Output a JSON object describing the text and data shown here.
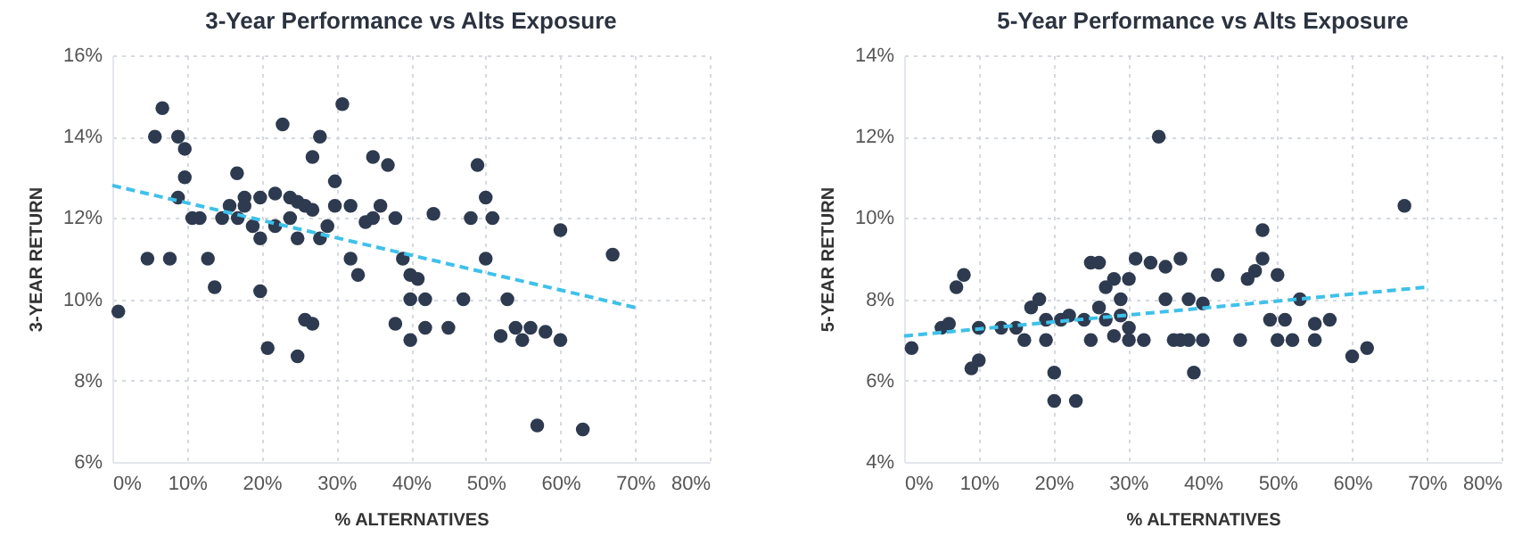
{
  "chart_data": [
    {
      "type": "scatter",
      "title": "3-Year Performance vs Alts Exposure",
      "xlabel": "% ALTERNATIVES",
      "ylabel": "3-YEAR RETURN",
      "xlim": [
        0,
        80
      ],
      "xticks": [
        {
          "value": 0,
          "label": "0%"
        },
        {
          "value": 10,
          "label": "10%"
        },
        {
          "value": 20,
          "label": "20%"
        },
        {
          "value": 30,
          "label": "30%"
        },
        {
          "value": 40,
          "label": "40%"
        },
        {
          "value": 50,
          "label": "50%"
        },
        {
          "value": 60,
          "label": "60%"
        },
        {
          "value": 70,
          "label": "70%"
        },
        {
          "value": 80,
          "label": "80%"
        }
      ],
      "ylim": [
        6,
        16
      ],
      "yticks": [
        {
          "value": 6,
          "label": "6%"
        },
        {
          "value": 8,
          "label": "8%"
        },
        {
          "value": 10,
          "label": "10%"
        },
        {
          "value": 12,
          "label": "12%"
        },
        {
          "value": 14,
          "label": "14%"
        },
        {
          "value": 16,
          "label": "16%"
        }
      ],
      "grid": true,
      "series": [
        {
          "marker": "circle",
          "color": "#2d3a4f",
          "x": [
            0.8,
            4.7,
            5.7,
            6.7,
            7.7,
            8.8,
            8.8,
            9.7,
            9.7,
            10.7,
            11.7,
            12.8,
            13.7,
            14.7,
            15.7,
            16.7,
            16.8,
            17.7,
            17.7,
            18.8,
            19.8,
            19.8,
            19.8,
            20.8,
            21.8,
            21.8,
            22.8,
            23.8,
            23.8,
            24.8,
            24.8,
            24.8,
            25.8,
            25.8,
            26.8,
            26.8,
            26.8,
            27.8,
            27.8,
            28.8,
            29.8,
            29.8,
            30.8,
            31.9,
            31.9,
            32.9,
            33.9,
            34.9,
            34.9,
            35.9,
            36.9,
            37.9,
            37.9,
            38.9,
            39.9,
            39.9,
            39.9,
            40.9,
            41.9,
            41.9,
            43.0,
            45.0,
            47.0,
            48.0,
            48.9,
            50.0,
            50.0,
            50.9,
            52.0,
            52.9,
            54.0,
            54.9,
            56.0,
            56.9,
            58.0,
            60.0,
            60.0,
            63.0,
            67.0
          ],
          "values": [
            9.7,
            11.0,
            14.0,
            14.7,
            11.0,
            14.0,
            12.5,
            13.7,
            13.0,
            12.0,
            12.0,
            11.0,
            10.3,
            12.0,
            12.3,
            13.1,
            12.0,
            12.5,
            12.3,
            11.8,
            12.5,
            11.5,
            10.2,
            8.8,
            12.6,
            11.8,
            14.3,
            12.5,
            12.0,
            12.4,
            11.5,
            8.6,
            12.3,
            9.5,
            12.2,
            13.5,
            9.4,
            11.5,
            14.0,
            11.8,
            12.9,
            12.3,
            14.8,
            12.3,
            11.0,
            10.6,
            11.9,
            12.0,
            13.5,
            12.3,
            13.3,
            12.0,
            9.4,
            11.0,
            10.6,
            10.0,
            9.0,
            10.5,
            10.0,
            9.3,
            12.1,
            9.3,
            10.0,
            12.0,
            13.3,
            12.5,
            11.0,
            12.0,
            9.1,
            10.0,
            9.3,
            9.0,
            9.3,
            6.9,
            9.2,
            11.7,
            9.0,
            6.8,
            11.1
          ]
        },
        {
          "type": "line",
          "color": "#3ec1ea",
          "line_style": "dashed",
          "x": [
            0,
            70
          ],
          "values": [
            12.8,
            9.8
          ]
        }
      ]
    },
    {
      "type": "scatter",
      "title": "5-Year Performance vs Alts Exposure",
      "xlabel": "% ALTERNATIVES",
      "ylabel": "5-YEAR RETURN",
      "xlim": [
        0,
        80
      ],
      "xticks": [
        {
          "value": 0,
          "label": "0%"
        },
        {
          "value": 10,
          "label": "10%"
        },
        {
          "value": 20,
          "label": "20%"
        },
        {
          "value": 30,
          "label": "30%"
        },
        {
          "value": 40,
          "label": "40%"
        },
        {
          "value": 50,
          "label": "50%"
        },
        {
          "value": 60,
          "label": "60%"
        },
        {
          "value": 70,
          "label": "70%"
        },
        {
          "value": 80,
          "label": "80%"
        }
      ],
      "ylim": [
        4,
        14
      ],
      "yticks": [
        {
          "value": 4,
          "label": "4%"
        },
        {
          "value": 6,
          "label": "6%"
        },
        {
          "value": 8,
          "label": "8%"
        },
        {
          "value": 10,
          "label": "10%"
        },
        {
          "value": 12,
          "label": "12%"
        },
        {
          "value": 14,
          "label": "14%"
        }
      ],
      "grid": true,
      "series": [
        {
          "marker": "circle",
          "color": "#2d3a4f",
          "x": [
            1.0,
            5.0,
            6.0,
            7.0,
            8.0,
            9.0,
            10.0,
            10.0,
            13.0,
            15.0,
            16.1,
            17.0,
            18.1,
            19.0,
            19.0,
            20.1,
            20.1,
            21.0,
            22.1,
            23.0,
            24.1,
            25.0,
            25.0,
            26.1,
            26.1,
            27.0,
            27.0,
            28.1,
            28.1,
            29.0,
            29.0,
            30.1,
            30.1,
            30.1,
            31.0,
            32.1,
            33.0,
            34.1,
            35.0,
            35.0,
            36.1,
            37.0,
            37.0,
            38.1,
            38.1,
            38.8,
            40.0,
            40.0,
            42.0,
            45.0,
            46.0,
            47.0,
            48.0,
            48.0,
            49.0,
            50.0,
            50.0,
            51.0,
            52.0,
            53.0,
            55.0,
            55.0,
            57.0,
            60.0,
            62.0,
            67.0
          ],
          "values": [
            6.8,
            7.3,
            7.4,
            8.3,
            8.6,
            6.3,
            6.5,
            7.3,
            7.3,
            7.3,
            7.0,
            7.8,
            8.0,
            7.5,
            7.0,
            6.2,
            5.5,
            7.5,
            7.6,
            5.5,
            7.5,
            7.0,
            8.9,
            8.9,
            7.8,
            8.3,
            7.5,
            8.5,
            7.1,
            8.0,
            7.6,
            8.5,
            7.3,
            7.0,
            9.0,
            7.0,
            8.9,
            12.0,
            8.8,
            8.0,
            7.0,
            9.0,
            7.0,
            8.0,
            7.0,
            6.2,
            7.9,
            7.0,
            8.6,
            7.0,
            8.5,
            8.7,
            9.7,
            9.0,
            7.5,
            8.6,
            7.0,
            7.5,
            7.0,
            8.0,
            7.4,
            7.0,
            7.5,
            6.6,
            6.8,
            10.3
          ]
        },
        {
          "type": "line",
          "color": "#3ec1ea",
          "line_style": "dashed",
          "x": [
            0,
            70
          ],
          "values": [
            7.1,
            8.3
          ]
        }
      ]
    }
  ]
}
